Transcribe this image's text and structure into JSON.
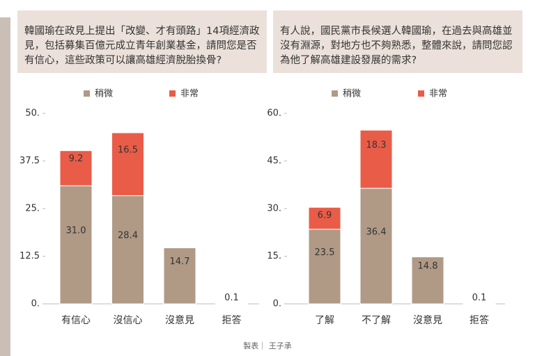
{
  "chart_data": [
    {
      "type": "stacked_bar",
      "question": "韓國瑜在政見上提出「改變、才有頭路」14項經濟政見，包括募集百億元成立青年創業基金，請問您是否有信心，這些政策可以讓高雄經濟脫胎換骨?",
      "categories": [
        "有信心",
        "沒信心",
        "沒意見",
        "拒答"
      ],
      "series": [
        {
          "name": "稍微",
          "color": "#b09a86",
          "values": [
            31.0,
            28.4,
            14.7,
            0.1
          ],
          "value_labels": [
            "31.0",
            "28.4",
            "14.7",
            "0.1"
          ]
        },
        {
          "name": "非常",
          "color": "#e95c48",
          "values": [
            9.2,
            16.5,
            null,
            null
          ]
        }
      ],
      "ylim": [
        0,
        50
      ],
      "yticks": [
        {
          "value": 0,
          "label": "0."
        },
        12.5,
        {
          "value": 25,
          "label": "25."
        },
        37.5,
        {
          "value": 50,
          "label": "50."
        }
      ],
      "grid": false,
      "legend": "top"
    },
    {
      "type": "stacked_bar",
      "question": "有人說，國民黨市長候選人韓國瑜，在過去與高雄並沒有淵源，對地方也不夠熟悉，整體來說，請問您認為他了解高雄建設發展的需求?",
      "categories": [
        "了解",
        "不了解",
        "沒意見",
        "拒答"
      ],
      "series": [
        {
          "name": "稍微",
          "color": "#b09a86",
          "values": [
            23.5,
            36.4,
            14.8,
            0.1
          ]
        },
        {
          "name": "非常",
          "color": "#e95c48",
          "values": [
            6.9,
            18.3,
            null,
            null
          ]
        }
      ],
      "ylim": [
        0,
        60
      ],
      "yticks": [
        {
          "value": 0,
          "label": "0."
        },
        {
          "value": 15,
          "label": "15."
        },
        {
          "value": 30,
          "label": "30."
        },
        {
          "value": 45,
          "label": "45."
        },
        {
          "value": 60,
          "label": "60."
        }
      ],
      "grid": false,
      "legend": "top"
    }
  ],
  "footer": "製表｜ 王子承"
}
